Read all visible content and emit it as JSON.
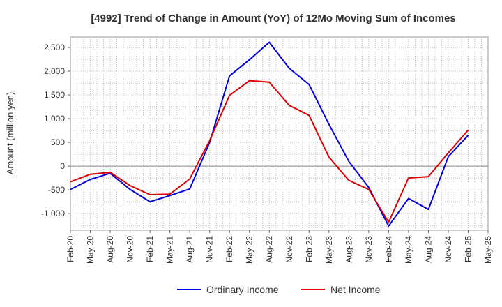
{
  "chart_data": {
    "type": "line",
    "title": "[4992]  Trend of Change in Amount (YoY) of 12Mo Moving Sum of Incomes",
    "xlabel": "",
    "ylabel": "Amount (million yen)",
    "ylim": [
      -1350,
      2720
    ],
    "yticks": [
      -1000,
      -500,
      0,
      500,
      1000,
      1500,
      2000,
      2500
    ],
    "ytick_labels": [
      "-1,000",
      "-500",
      "0",
      "500",
      "1,000",
      "1,500",
      "2,000",
      "2,500"
    ],
    "categories": [
      "Feb-20",
      "May-20",
      "Aug-20",
      "Nov-20",
      "Feb-21",
      "May-21",
      "Aug-21",
      "Nov-21",
      "Feb-22",
      "May-22",
      "Aug-22",
      "Nov-22",
      "Feb-23",
      "May-23",
      "Aug-23",
      "Nov-23",
      "Feb-24",
      "May-24",
      "Aug-24",
      "Nov-24",
      "Feb-25",
      "May-25"
    ],
    "grid": true,
    "legend_position": "bottom",
    "series": [
      {
        "name": "Ordinary Income",
        "color": "#0000dd",
        "values": [
          -490,
          -280,
          -150,
          -490,
          -750,
          -620,
          -480,
          500,
          1900,
          2240,
          2610,
          2060,
          1720,
          880,
          100,
          -450,
          -1260,
          -680,
          -910,
          200,
          650,
          null
        ]
      },
      {
        "name": "Net Income",
        "color": "#dd0000",
        "values": [
          -330,
          -170,
          -130,
          -410,
          -600,
          -590,
          -270,
          540,
          1490,
          1800,
          1770,
          1280,
          1070,
          190,
          -300,
          -490,
          -1180,
          -250,
          -220,
          280,
          760,
          null
        ]
      }
    ]
  }
}
